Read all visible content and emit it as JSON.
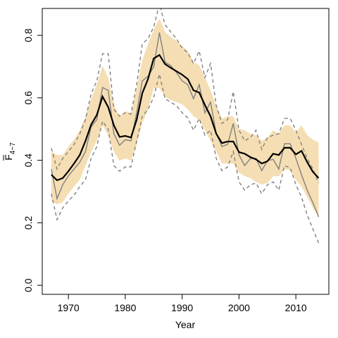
{
  "chart_data": {
    "type": "line",
    "xlabel": "Year",
    "ylabel": {
      "main": "F",
      "sub": "4−7"
    },
    "x": [
      1967,
      1968,
      1969,
      1970,
      1971,
      1972,
      1973,
      1974,
      1975,
      1976,
      1977,
      1978,
      1979,
      1980,
      1981,
      1982,
      1983,
      1984,
      1985,
      1986,
      1987,
      1988,
      1989,
      1990,
      1991,
      1992,
      1993,
      1994,
      1995,
      1996,
      1997,
      1998,
      1999,
      2000,
      2001,
      2002,
      2003,
      2004,
      2005,
      2006,
      2007,
      2008,
      2009,
      2010,
      2011,
      2012,
      2013,
      2014
    ],
    "band": {
      "color": "#f5deb3",
      "upper": [
        0.428,
        0.417,
        0.417,
        0.444,
        0.466,
        0.496,
        0.541,
        0.597,
        0.642,
        0.703,
        0.665,
        0.579,
        0.541,
        0.557,
        0.552,
        0.631,
        0.721,
        0.773,
        0.818,
        0.854,
        0.811,
        0.795,
        0.782,
        0.766,
        0.75,
        0.714,
        0.705,
        0.665,
        0.624,
        0.575,
        0.534,
        0.541,
        0.541,
        0.5,
        0.496,
        0.485,
        0.48,
        0.462,
        0.473,
        0.496,
        0.485,
        0.512,
        0.512,
        0.489,
        0.512,
        0.48,
        0.466,
        0.457
      ],
      "lower": [
        0.27,
        0.259,
        0.266,
        0.293,
        0.316,
        0.338,
        0.383,
        0.428,
        0.462,
        0.512,
        0.48,
        0.428,
        0.399,
        0.406,
        0.399,
        0.451,
        0.518,
        0.563,
        0.631,
        0.631,
        0.602,
        0.593,
        0.586,
        0.579,
        0.563,
        0.541,
        0.53,
        0.496,
        0.462,
        0.428,
        0.39,
        0.39,
        0.39,
        0.361,
        0.349,
        0.343,
        0.331,
        0.322,
        0.327,
        0.349,
        0.349,
        0.372,
        0.367,
        0.338,
        0.316,
        0.282,
        0.248,
        0.219
      ]
    },
    "series": [
      {
        "color": "#808080",
        "dash": true,
        "values": [
          0.439,
          0.372,
          0.406,
          0.428,
          0.451,
          0.485,
          0.53,
          0.613,
          0.654,
          0.741,
          0.741,
          0.563,
          0.541,
          0.552,
          0.548,
          0.642,
          0.773,
          0.789,
          0.827,
          0.9,
          0.834,
          0.811,
          0.789,
          0.759,
          0.744,
          0.71,
          0.75,
          0.665,
          0.71,
          0.575,
          0.518,
          0.53,
          0.62,
          0.496,
          0.462,
          0.473,
          0.496,
          0.435,
          0.473,
          0.48,
          0.485,
          0.534,
          0.534,
          0.496,
          0.451,
          0.406,
          0.372,
          0.327
        ]
      },
      {
        "color": "#808080",
        "dash": true,
        "values": [
          0.293,
          0.21,
          0.248,
          0.27,
          0.288,
          0.316,
          0.338,
          0.406,
          0.444,
          0.525,
          0.5,
          0.383,
          0.365,
          0.379,
          0.379,
          0.462,
          0.541,
          0.563,
          0.602,
          0.676,
          0.597,
          0.586,
          0.575,
          0.552,
          0.536,
          0.496,
          0.534,
          0.48,
          0.496,
          0.406,
          0.367,
          0.379,
          0.428,
          0.331,
          0.304,
          0.322,
          0.327,
          0.293,
          0.322,
          0.331,
          0.304,
          0.383,
          0.376,
          0.322,
          0.282,
          0.225,
          0.18,
          0.135
        ]
      },
      {
        "color": "#808080",
        "dash": false,
        "values": [
          0.372,
          0.277,
          0.322,
          0.35,
          0.372,
          0.394,
          0.428,
          0.507,
          0.53,
          0.633,
          0.624,
          0.485,
          0.448,
          0.466,
          0.462,
          0.552,
          0.654,
          0.669,
          0.699,
          0.809,
          0.714,
          0.703,
          0.681,
          0.654,
          0.642,
          0.597,
          0.642,
          0.552,
          0.586,
          0.485,
          0.444,
          0.451,
          0.518,
          0.417,
          0.383,
          0.406,
          0.406,
          0.367,
          0.399,
          0.403,
          0.372,
          0.453,
          0.453,
          0.406,
          0.354,
          0.304,
          0.264,
          0.219
        ]
      },
      {
        "color": "#000000",
        "dash": false,
        "values": [
          0.354,
          0.336,
          0.343,
          0.365,
          0.39,
          0.417,
          0.462,
          0.514,
          0.545,
          0.604,
          0.57,
          0.512,
          0.475,
          0.478,
          0.473,
          0.53,
          0.615,
          0.66,
          0.726,
          0.737,
          0.708,
          0.696,
          0.685,
          0.674,
          0.66,
          0.624,
          0.617,
          0.577,
          0.541,
          0.485,
          0.455,
          0.46,
          0.46,
          0.426,
          0.421,
          0.41,
          0.403,
          0.39,
          0.397,
          0.421,
          0.417,
          0.44,
          0.44,
          0.419,
          0.43,
          0.394,
          0.363,
          0.343
        ]
      }
    ],
    "xlim": [
      1965.4,
      2015.8
    ],
    "xticks": [
      1970,
      1980,
      1990,
      2000,
      2010
    ],
    "ylim": [
      -0.029,
      0.886
    ],
    "yticks": [
      {
        "value": 0,
        "label": "0.0"
      },
      0.2,
      0.4,
      0.6,
      0.8
    ]
  }
}
